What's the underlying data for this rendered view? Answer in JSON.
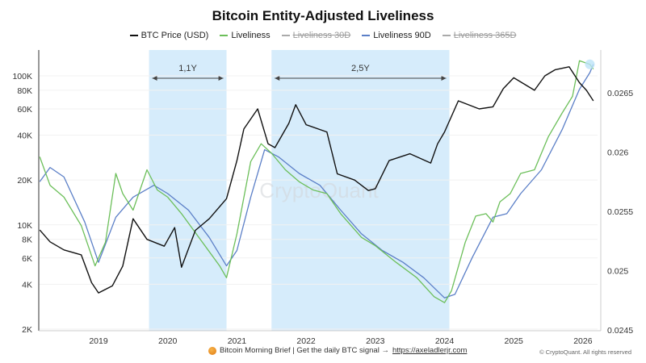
{
  "chart_data": {
    "type": "line",
    "title": "Bitcoin Entity-Adjusted Liveliness",
    "legend": [
      {
        "name": "BTC Price (USD)",
        "color": "#111111",
        "active": true
      },
      {
        "name": "Liveliness",
        "color": "#6cbf5a",
        "active": true
      },
      {
        "name": "Liveliness 30D",
        "color": "#aaaaaa",
        "active": false
      },
      {
        "name": "Liveliness 90D",
        "color": "#5b7fc7",
        "active": true
      },
      {
        "name": "Liveliness 365D",
        "color": "#aaaaaa",
        "active": false
      }
    ],
    "legend_placement": "top-center",
    "x_ticks": [
      "2019",
      "2020",
      "2021",
      "2022",
      "2023",
      "2024",
      "2025",
      "2026"
    ],
    "xlim": [
      2018.1,
      2026.2
    ],
    "y_left": {
      "scale": "log",
      "range": [
        2000,
        130000
      ],
      "ticks": [
        "2K",
        "4K",
        "6K",
        "8K",
        "10K",
        "20K",
        "40K",
        "60K",
        "80K",
        "100K"
      ],
      "tick_values": [
        2000,
        4000,
        6000,
        8000,
        10000,
        20000,
        40000,
        60000,
        80000,
        100000
      ]
    },
    "y_right": {
      "scale": "linear",
      "range": [
        0.0245,
        0.02685
      ],
      "ticks": [
        "0.0245",
        "0.025",
        "0.0255",
        "0.026",
        "0.0265"
      ],
      "tick_values": [
        0.0245,
        0.025,
        0.0255,
        0.026,
        0.0265
      ]
    },
    "shaded_regions": [
      {
        "from": 2019.73,
        "to": 2020.85,
        "label": "1,1Y"
      },
      {
        "from": 2021.5,
        "to": 2024.07,
        "label": "2,5Y"
      }
    ],
    "watermark": "CryptoQuant",
    "series": [
      {
        "name": "BTC Price (USD)",
        "axis": "left",
        "x": [
          2018.15,
          2018.3,
          2018.5,
          2018.75,
          2018.9,
          2019.0,
          2019.2,
          2019.35,
          2019.5,
          2019.7,
          2019.95,
          2020.1,
          2020.2,
          2020.4,
          2020.6,
          2020.85,
          2021.0,
          2021.1,
          2021.3,
          2021.45,
          2021.55,
          2021.75,
          2021.85,
          2022.0,
          2022.3,
          2022.45,
          2022.7,
          2022.9,
          2023.0,
          2023.2,
          2023.5,
          2023.8,
          2023.9,
          2024.0,
          2024.2,
          2024.5,
          2024.7,
          2024.85,
          2025.0,
          2025.3,
          2025.45,
          2025.6,
          2025.8,
          2025.95,
          2026.05,
          2026.15
        ],
        "y": [
          9250,
          7700,
          6800,
          6300,
          4100,
          3500,
          3900,
          5300,
          11000,
          8000,
          7200,
          9600,
          5200,
          9200,
          11000,
          15000,
          27000,
          44000,
          60000,
          35000,
          33000,
          48000,
          64000,
          47000,
          42000,
          22000,
          20000,
          17000,
          17500,
          27000,
          30000,
          26000,
          35000,
          42000,
          68000,
          60000,
          62000,
          82000,
          97000,
          80000,
          100000,
          110000,
          115000,
          90000,
          80000,
          68000
        ]
      },
      {
        "name": "Liveliness",
        "axis": "right",
        "x": [
          2018.15,
          2018.3,
          2018.5,
          2018.75,
          2018.95,
          2019.1,
          2019.25,
          2019.35,
          2019.5,
          2019.7,
          2019.85,
          2020.0,
          2020.2,
          2020.5,
          2020.75,
          2020.85,
          2021.0,
          2021.2,
          2021.35,
          2021.5,
          2021.7,
          2021.9,
          2022.1,
          2022.3,
          2022.5,
          2022.8,
          2023.0,
          2023.3,
          2023.6,
          2023.85,
          2024.0,
          2024.1,
          2024.3,
          2024.45,
          2024.6,
          2024.7,
          2024.8,
          2024.95,
          2025.1,
          2025.3,
          2025.5,
          2025.7,
          2025.85,
          2025.95,
          2026.1,
          2026.15
        ],
        "y": [
          0.02596,
          0.02572,
          0.02562,
          0.02538,
          0.02504,
          0.02524,
          0.02582,
          0.02565,
          0.02551,
          0.02585,
          0.02568,
          0.02562,
          0.02548,
          0.02524,
          0.02504,
          0.02494,
          0.02531,
          0.02592,
          0.02607,
          0.02599,
          0.02585,
          0.02575,
          0.02568,
          0.02565,
          0.02548,
          0.02528,
          0.02521,
          0.02507,
          0.02494,
          0.02478,
          0.02473,
          0.02483,
          0.02524,
          0.02546,
          0.02548,
          0.02541,
          0.02558,
          0.02565,
          0.02582,
          0.02585,
          0.02613,
          0.02633,
          0.02647,
          0.02677,
          0.02674,
          0.0267
        ]
      },
      {
        "name": "Liveliness 90D",
        "axis": "right",
        "x": [
          2018.15,
          2018.3,
          2018.5,
          2018.8,
          2019.0,
          2019.25,
          2019.5,
          2019.8,
          2020.0,
          2020.3,
          2020.6,
          2020.85,
          2021.0,
          2021.2,
          2021.4,
          2021.6,
          2021.9,
          2022.2,
          2022.5,
          2022.8,
          2023.1,
          2023.4,
          2023.7,
          2024.0,
          2024.15,
          2024.4,
          2024.7,
          2024.9,
          2025.1,
          2025.4,
          2025.7,
          2025.95,
          2026.1,
          2026.15
        ],
        "y": [
          0.02575,
          0.02587,
          0.02579,
          0.02541,
          0.02507,
          0.02545,
          0.02562,
          0.02572,
          0.02565,
          0.02551,
          0.02528,
          0.02504,
          0.02517,
          0.02562,
          0.02602,
          0.02596,
          0.02582,
          0.02572,
          0.02551,
          0.02531,
          0.02517,
          0.02507,
          0.02494,
          0.02477,
          0.0248,
          0.02511,
          0.02545,
          0.02548,
          0.02565,
          0.02585,
          0.02619,
          0.02653,
          0.02667,
          0.02674
        ]
      }
    ]
  },
  "footer": {
    "text": "Bitcoin Morning Brief | Get the daily BTC signal →",
    "link": "https://axeladlerjr.com",
    "copyright": "© CryptoQuant. All rights reserved"
  }
}
